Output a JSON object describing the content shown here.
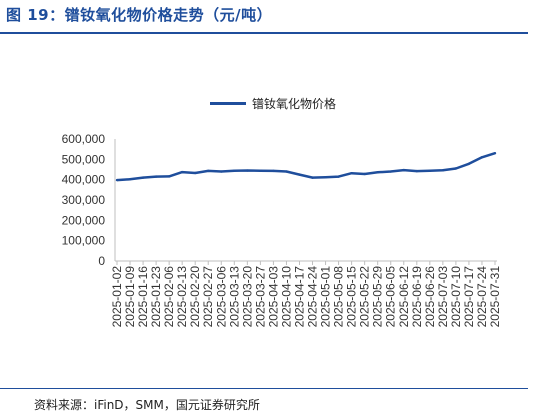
{
  "figure": {
    "title": "图 19：镨钕氧化物价格走势（元/吨）",
    "source": "资料来源：iFinD，SMM，国元证券研究所"
  },
  "colors": {
    "series": "#1f4e9c",
    "axis": "#bfbfbf",
    "text": "#333333"
  },
  "chart_data": {
    "type": "line",
    "title": "",
    "xlabel": "",
    "ylabel": "",
    "ylim": [
      0,
      600000
    ],
    "yticks": [
      "0",
      "100,000",
      "200,000",
      "300,000",
      "400,000",
      "500,000",
      "600,000"
    ],
    "grid": false,
    "legend_position": "top-center",
    "x": [
      "2025-01-02",
      "2025-01-09",
      "2025-01-16",
      "2025-01-23",
      "2025-02-06",
      "2025-02-13",
      "2025-02-20",
      "2025-02-27",
      "2025-03-06",
      "2025-03-13",
      "2025-03-20",
      "2025-03-27",
      "2025-04-03",
      "2025-04-10",
      "2025-04-17",
      "2025-04-24",
      "2025-05-01",
      "2025-05-08",
      "2025-05-15",
      "2025-05-22",
      "2025-05-29",
      "2025-06-05",
      "2025-06-12",
      "2025-06-19",
      "2025-06-26",
      "2025-07-03",
      "2025-07-10",
      "2025-07-17",
      "2025-07-24",
      "2025-07-31"
    ],
    "xtick_labels": [
      "2025-01-02",
      "2025-01-09",
      "2025-01-16",
      "2025-01-23",
      "2025-02-06",
      "2025-02-13",
      "2025-02-20",
      "2025-02-27",
      "2025-03-06",
      "2025-03-13",
      "2025-03-20",
      "2025-03-27",
      "2025-04-03",
      "2025-04-10",
      "2025-04-17",
      "2025-04-24",
      "2025-05-01",
      "2025-05-08",
      "2025-05-15",
      "2025-05-22",
      "2025-05-29",
      "2025-06-05",
      "2025-06-12",
      "2025-06-19",
      "2025-06-26",
      "2025-07-03",
      "2025-07-10",
      "2025-07-17",
      "2025-07-24",
      "2025-07-31"
    ],
    "series": [
      {
        "name": "镨钕氧化物价格",
        "values": [
          398000,
          402000,
          410000,
          415000,
          416000,
          437000,
          433000,
          443000,
          440000,
          444000,
          445000,
          444000,
          443000,
          440000,
          425000,
          410000,
          412000,
          415000,
          432000,
          428000,
          436000,
          440000,
          447000,
          442000,
          444000,
          446000,
          455000,
          478000,
          510000,
          530000
        ]
      }
    ]
  }
}
